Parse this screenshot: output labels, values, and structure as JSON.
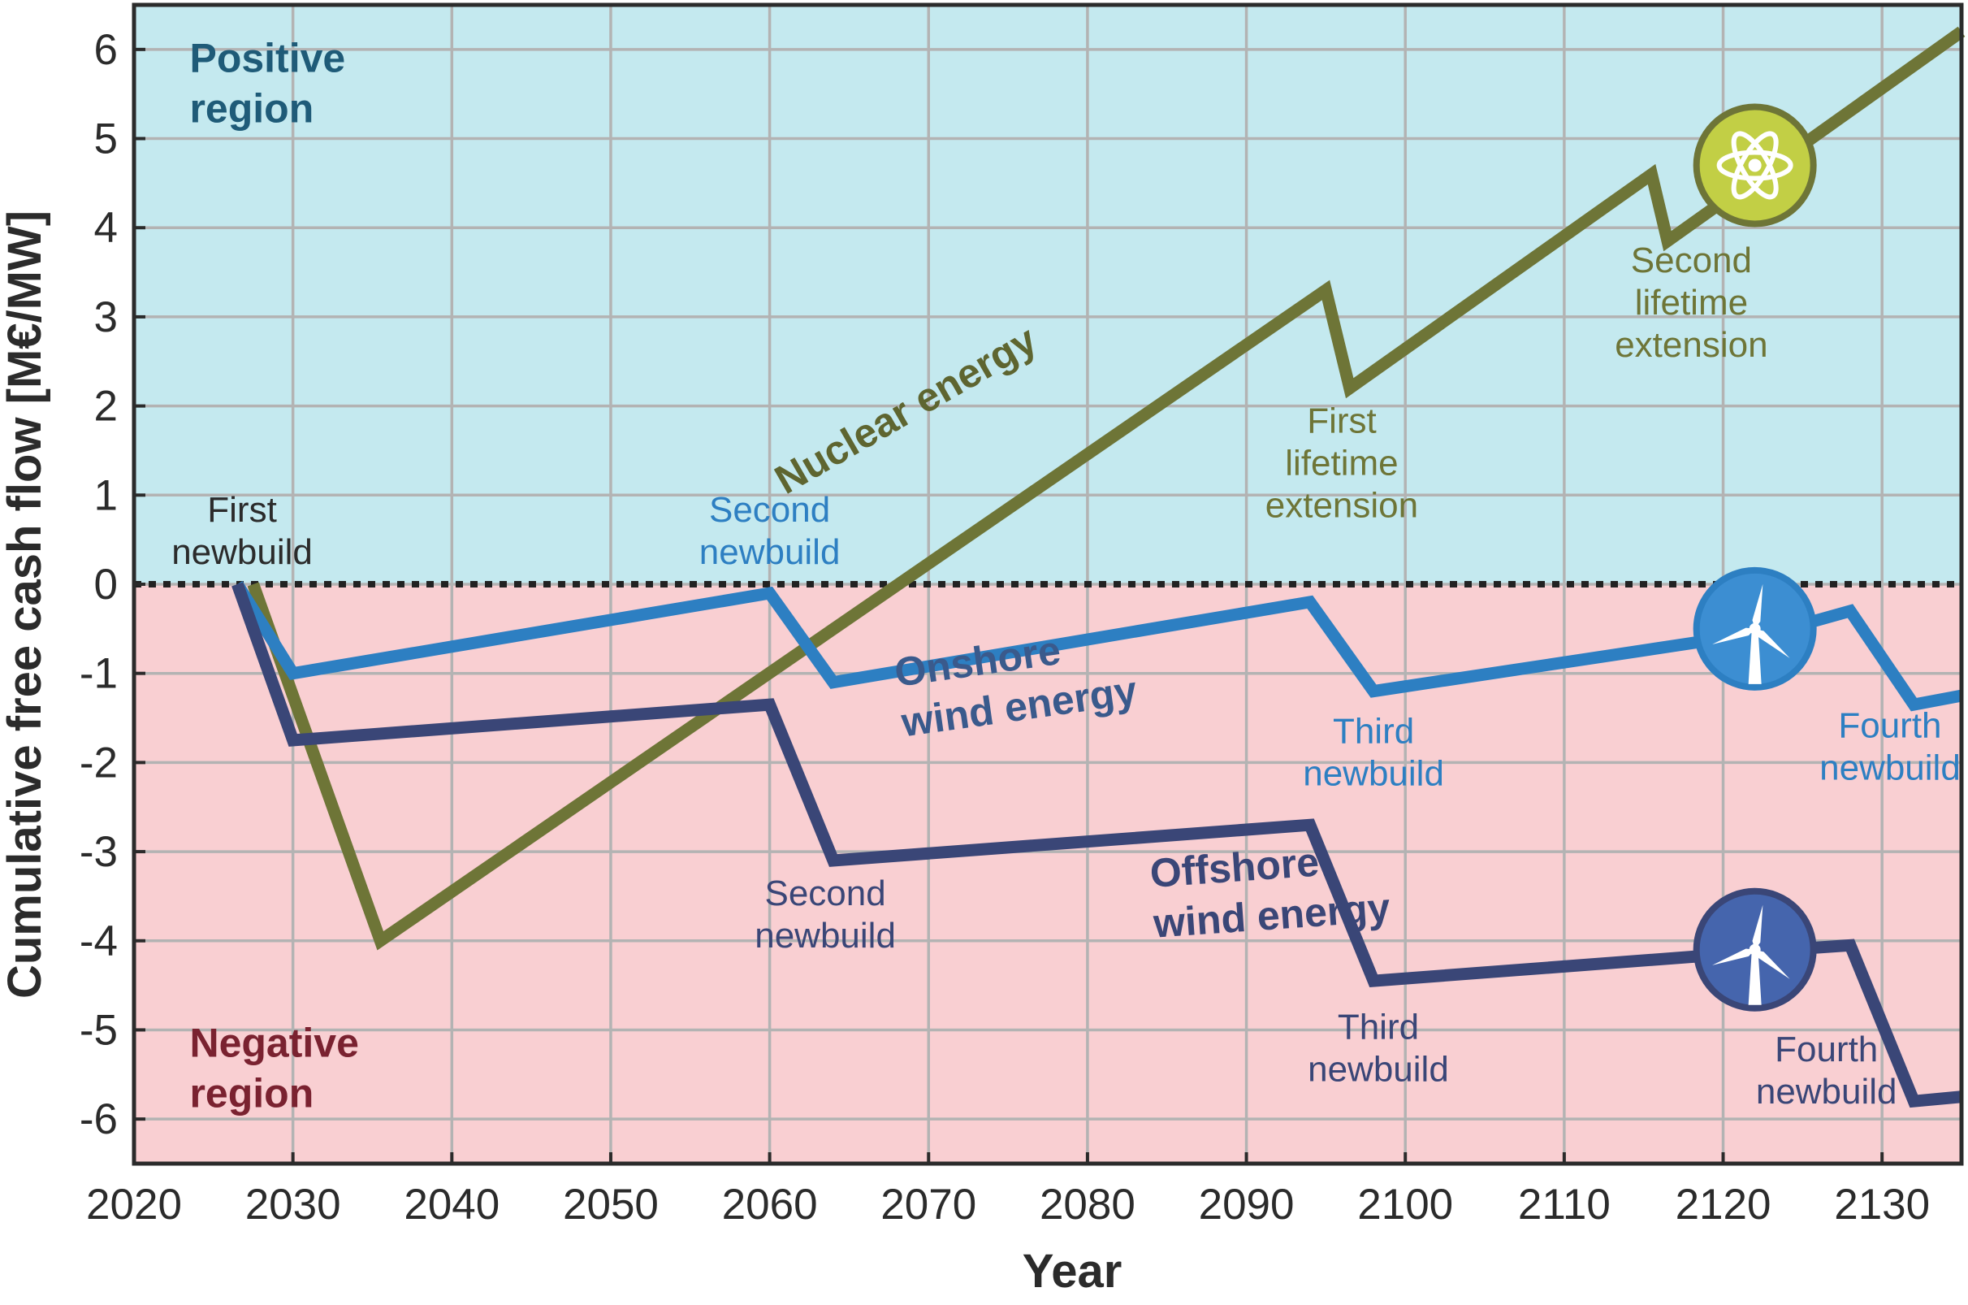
{
  "chart_data": {
    "type": "line",
    "xlabel": "Year",
    "ylabel": "Cumulative free cash flow [M€/MW]",
    "xlim": [
      2020,
      2135
    ],
    "ylim": [
      -6.5,
      6.5
    ],
    "xticks": [
      "2020",
      "2030",
      "2040",
      "2050",
      "2060",
      "2070",
      "2080",
      "2090",
      "2100",
      "2110",
      "2120",
      "2130"
    ],
    "yticks": [
      "6",
      "5",
      "4",
      "3",
      "2",
      "1",
      "0",
      "-1",
      "-2",
      "-3",
      "-4",
      "-5",
      "-6"
    ],
    "grid": true,
    "zero_line": "dotted",
    "regions": {
      "positive": {
        "label": "Positive region",
        "color": "#c4e9ef"
      },
      "negative": {
        "label": "Negative region",
        "color": "#f9cfd2"
      }
    },
    "series": [
      {
        "name": "Nuclear energy",
        "color": "#6e7537",
        "icon": "atom-icon",
        "points": [
          [
            2027.5,
            0
          ],
          [
            2035.5,
            -4.0
          ],
          [
            2095,
            3.3
          ],
          [
            2096.5,
            2.2
          ],
          [
            2115.5,
            4.6
          ],
          [
            2116.5,
            3.85
          ],
          [
            2135,
            6.2
          ]
        ]
      },
      {
        "name": "Onshore wind energy",
        "color": "#2d7fc2",
        "icon": "wind-turbine-icon",
        "points": [
          [
            2026.5,
            0
          ],
          [
            2030,
            -1.0
          ],
          [
            2060,
            -0.1
          ],
          [
            2064,
            -1.1
          ],
          [
            2094,
            -0.2
          ],
          [
            2098,
            -1.2
          ],
          [
            2124,
            -0.5
          ],
          [
            2128,
            -0.3
          ],
          [
            2132,
            -1.35
          ],
          [
            2135,
            -1.25
          ]
        ]
      },
      {
        "name": "Offshore wind energy",
        "color": "#3a4677",
        "icon": "wind-turbine-icon",
        "points": [
          [
            2026.5,
            0
          ],
          [
            2030,
            -1.75
          ],
          [
            2060,
            -1.35
          ],
          [
            2064,
            -3.1
          ],
          [
            2094,
            -2.7
          ],
          [
            2098,
            -4.45
          ],
          [
            2124,
            -4.1
          ],
          [
            2128,
            -4.05
          ],
          [
            2132,
            -5.8
          ],
          [
            2135,
            -5.75
          ]
        ]
      }
    ],
    "annotations": [
      {
        "text": [
          "Positive",
          "region"
        ],
        "color": "#1f5b78",
        "bold": true,
        "x": 2023.5,
        "y": 5.75,
        "anchor": "start"
      },
      {
        "text": [
          "Negative",
          "region"
        ],
        "color": "#7a2230",
        "bold": true,
        "x": 2023.5,
        "y": -5.3,
        "anchor": "start"
      },
      {
        "text": [
          "First",
          "newbuild"
        ],
        "color": "#2b2b2b",
        "bold": false,
        "x": 2026.8,
        "y": 0.7,
        "anchor": "middle"
      },
      {
        "text": [
          "Second",
          "newbuild"
        ],
        "color": "#2d7fc2",
        "bold": false,
        "x": 2060,
        "y": 0.7,
        "anchor": "middle"
      },
      {
        "text": [
          "Second",
          "newbuild"
        ],
        "color": "#3a4677",
        "bold": false,
        "x": 2063.5,
        "y": -3.6,
        "anchor": "middle"
      },
      {
        "text": [
          "First",
          "lifetime",
          "extension"
        ],
        "color": "#6e7537",
        "bold": false,
        "x": 2096,
        "y": 1.7,
        "anchor": "middle"
      },
      {
        "text": [
          "Second",
          "lifetime",
          "extension"
        ],
        "color": "#6e7537",
        "bold": false,
        "x": 2118,
        "y": 3.5,
        "anchor": "middle"
      },
      {
        "text": [
          "Third",
          "newbuild"
        ],
        "color": "#2d7fc2",
        "bold": false,
        "x": 2098,
        "y": -1.78,
        "anchor": "middle"
      },
      {
        "text": [
          "Third",
          "newbuild"
        ],
        "color": "#3a4677",
        "bold": false,
        "x": 2098.3,
        "y": -5.1,
        "anchor": "middle"
      },
      {
        "text": [
          "Fourth",
          "newbuild"
        ],
        "color": "#2d7fc2",
        "bold": false,
        "x": 2130.5,
        "y": -1.72,
        "anchor": "middle"
      },
      {
        "text": [
          "Fourth",
          "newbuild"
        ],
        "color": "#3a4677",
        "bold": false,
        "x": 2126.5,
        "y": -5.35,
        "anchor": "middle"
      },
      {
        "text": [
          "Onshore",
          "wind energy"
        ],
        "color": "#3a5a8c",
        "bold": true,
        "x": 2068,
        "y": -1.15,
        "anchor": "start",
        "rotate": -8
      },
      {
        "text": [
          "Offshore",
          "wind energy"
        ],
        "color": "#3a4677",
        "bold": true,
        "x": 2084,
        "y": -3.4,
        "anchor": "start",
        "rotate": -4
      },
      {
        "text": [
          "Nuclear energy"
        ],
        "color": "#5e6530",
        "bold": true,
        "x": 2061,
        "y": 1.0,
        "anchor": "start",
        "rotate": -30
      }
    ],
    "icons": [
      {
        "name": "atom-icon",
        "x": 2122,
        "y": 4.7,
        "fill": "#c2cf45",
        "stroke": "#6e7537"
      },
      {
        "name": "wind-turbine-icon",
        "x": 2122,
        "y": -0.5,
        "fill": "#3c8ed2",
        "stroke": "#2d7fc2"
      },
      {
        "name": "wind-turbine-icon",
        "x": 2122,
        "y": -4.1,
        "fill": "#4565ad",
        "stroke": "#3a4677"
      }
    ]
  }
}
